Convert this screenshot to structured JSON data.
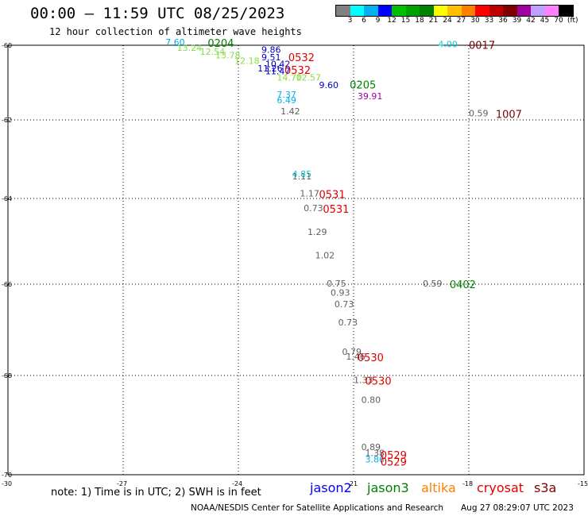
{
  "header": {
    "title": "00:00 — 11:59 UTC 08/25/2023",
    "subtitle": "12 hour collection of altimeter wave heights"
  },
  "colorbar": {
    "colors": [
      "#808080",
      "#00ffff",
      "#00b0f0",
      "#0000ff",
      "#00c000",
      "#00a000",
      "#008000",
      "#ffff00",
      "#ffc000",
      "#ff8000",
      "#ff0000",
      "#c00000",
      "#800000",
      "#a000a0",
      "#c0a0ff",
      "#ff80ff",
      "#000000"
    ],
    "labels": [
      "3",
      "6",
      "9",
      "12",
      "15",
      "18",
      "21",
      "24",
      "27",
      "30",
      "33",
      "36",
      "39",
      "42",
      "45",
      "70"
    ],
    "unit": "(ft)"
  },
  "map": {
    "lat_ticks": [
      "-60",
      "-62",
      "-64",
      "-66",
      "-68",
      "-70"
    ],
    "lon_ticks": [
      "-30",
      "-27",
      "-24",
      "-21",
      "-18",
      "-15"
    ],
    "wave_labels": [
      {
        "t": "7.60",
        "lon": -25.9,
        "lat": -60.0,
        "c": "#00b0f0"
      },
      {
        "t": "13.24",
        "lon": -25.6,
        "lat": -60.15,
        "c": "#80e040"
      },
      {
        "t": "12.54",
        "lon": -25.0,
        "lat": -60.25,
        "c": "#80e040"
      },
      {
        "t": "13.78",
        "lon": -24.6,
        "lat": -60.35,
        "c": "#80e040"
      },
      {
        "t": "12.18",
        "lon": -24.1,
        "lat": -60.5,
        "c": "#80e040"
      },
      {
        "t": "9.86",
        "lon": -23.4,
        "lat": -60.2,
        "c": "#0000c0"
      },
      {
        "t": "9.51",
        "lon": -23.4,
        "lat": -60.4,
        "c": "#0000c0"
      },
      {
        "t": "10.42",
        "lon": -23.3,
        "lat": -60.58,
        "c": "#0000c0"
      },
      {
        "t": "11.26",
        "lon": -23.5,
        "lat": -60.7,
        "c": "#0000c0"
      },
      {
        "t": "11.47",
        "lon": -23.3,
        "lat": -60.78,
        "c": "#0000c0"
      },
      {
        "t": "14.70",
        "lon": -23.0,
        "lat": -60.95,
        "c": "#80e040"
      },
      {
        "t": "12.57",
        "lon": -22.5,
        "lat": -60.95,
        "c": "#80e040"
      },
      {
        "t": "9.60",
        "lon": -21.9,
        "lat": -61.15,
        "c": "#0000c0"
      },
      {
        "t": "7.37",
        "lon": -23.0,
        "lat": -61.4,
        "c": "#00b0f0"
      },
      {
        "t": "6.49",
        "lon": -23.0,
        "lat": -61.55,
        "c": "#00b0f0"
      },
      {
        "t": "39.91",
        "lon": -20.9,
        "lat": -61.45,
        "c": "#a000a0"
      },
      {
        "t": "1.42",
        "lon": -22.9,
        "lat": -61.85,
        "c": "#606060"
      },
      {
        "t": "4.00",
        "lon": -18.8,
        "lat": -60.05,
        "c": "#00d0d0"
      },
      {
        "t": "0.59",
        "lon": -18.0,
        "lat": -61.9,
        "c": "#606060"
      },
      {
        "t": "4.85",
        "lon": -22.6,
        "lat": -63.45,
        "c": "#00d0d0"
      },
      {
        "t": "1.11",
        "lon": -22.6,
        "lat": -63.52,
        "c": "#606060"
      },
      {
        "t": "1.17",
        "lon": -22.4,
        "lat": -63.95,
        "c": "#606060"
      },
      {
        "t": "0.73",
        "lon": -22.3,
        "lat": -64.3,
        "c": "#606060"
      },
      {
        "t": "1.29",
        "lon": -22.2,
        "lat": -64.85,
        "c": "#606060"
      },
      {
        "t": "1.02",
        "lon": -22.0,
        "lat": -65.4,
        "c": "#606060"
      },
      {
        "t": "0.75",
        "lon": -21.7,
        "lat": -66.05,
        "c": "#606060"
      },
      {
        "t": "0.93",
        "lon": -21.6,
        "lat": -66.25,
        "c": "#606060"
      },
      {
        "t": "0.73",
        "lon": -21.5,
        "lat": -66.5,
        "c": "#606060"
      },
      {
        "t": "0.73",
        "lon": -21.4,
        "lat": -66.9,
        "c": "#606060"
      },
      {
        "t": "0.59",
        "lon": -19.2,
        "lat": -66.05,
        "c": "#606060"
      },
      {
        "t": "0.79",
        "lon": -21.3,
        "lat": -67.55,
        "c": "#606060"
      },
      {
        "t": "1.46",
        "lon": -21.2,
        "lat": -67.65,
        "c": "#606060"
      },
      {
        "t": "1.33",
        "lon": -21.0,
        "lat": -68.15,
        "c": "#606060"
      },
      {
        "t": "0.80",
        "lon": -20.8,
        "lat": -68.55,
        "c": "#606060"
      },
      {
        "t": "0.89",
        "lon": -20.8,
        "lat": -69.5,
        "c": "#606060"
      },
      {
        "t": "1.38",
        "lon": -20.7,
        "lat": -69.62,
        "c": "#606060"
      },
      {
        "t": "3.86",
        "lon": -20.7,
        "lat": -69.75,
        "c": "#00b0f0"
      }
    ],
    "time_labels": [
      {
        "t": "0204",
        "lon": -24.8,
        "lat": -60.0,
        "c": "#008000"
      },
      {
        "t": "0532",
        "lon": -22.7,
        "lat": -60.38,
        "c": "#e00000"
      },
      {
        "t": "0532",
        "lon": -22.8,
        "lat": -60.72,
        "c": "#e00000"
      },
      {
        "t": "0205",
        "lon": -21.1,
        "lat": -61.12,
        "c": "#008000"
      },
      {
        "t": "0017",
        "lon": -18.0,
        "lat": -60.05,
        "c": "#800000"
      },
      {
        "t": "1007",
        "lon": -17.3,
        "lat": -61.9,
        "c": "#800000"
      },
      {
        "t": "0531",
        "lon": -21.9,
        "lat": -63.95,
        "c": "#e00000"
      },
      {
        "t": "0531",
        "lon": -21.8,
        "lat": -64.3,
        "c": "#e00000"
      },
      {
        "t": "0402",
        "lon": -18.5,
        "lat": -66.05,
        "c": "#008000"
      },
      {
        "t": "0530",
        "lon": -20.9,
        "lat": -67.65,
        "c": "#e00000"
      },
      {
        "t": "0530",
        "lon": -20.7,
        "lat": -68.15,
        "c": "#e00000"
      },
      {
        "t": "0529",
        "lon": -20.3,
        "lat": -69.65,
        "c": "#e00000"
      },
      {
        "t": "0529",
        "lon": -20.3,
        "lat": -69.78,
        "c": "#e00000"
      }
    ]
  },
  "footer": {
    "note": "note: 1) Time is in UTC; 2) SWH is in feet",
    "satellites": [
      {
        "name": "jason2",
        "color": "#0000ff"
      },
      {
        "name": "jason3",
        "color": "#008000"
      },
      {
        "name": "altika",
        "color": "#ff8000"
      },
      {
        "name": "cryosat",
        "color": "#e00000"
      },
      {
        "name": "s3a",
        "color": "#800000"
      }
    ],
    "credit": "NOAA/NESDIS Center for Satellite Applications and Research",
    "generated": "Aug 27 08:29:07 UTC 2023"
  }
}
